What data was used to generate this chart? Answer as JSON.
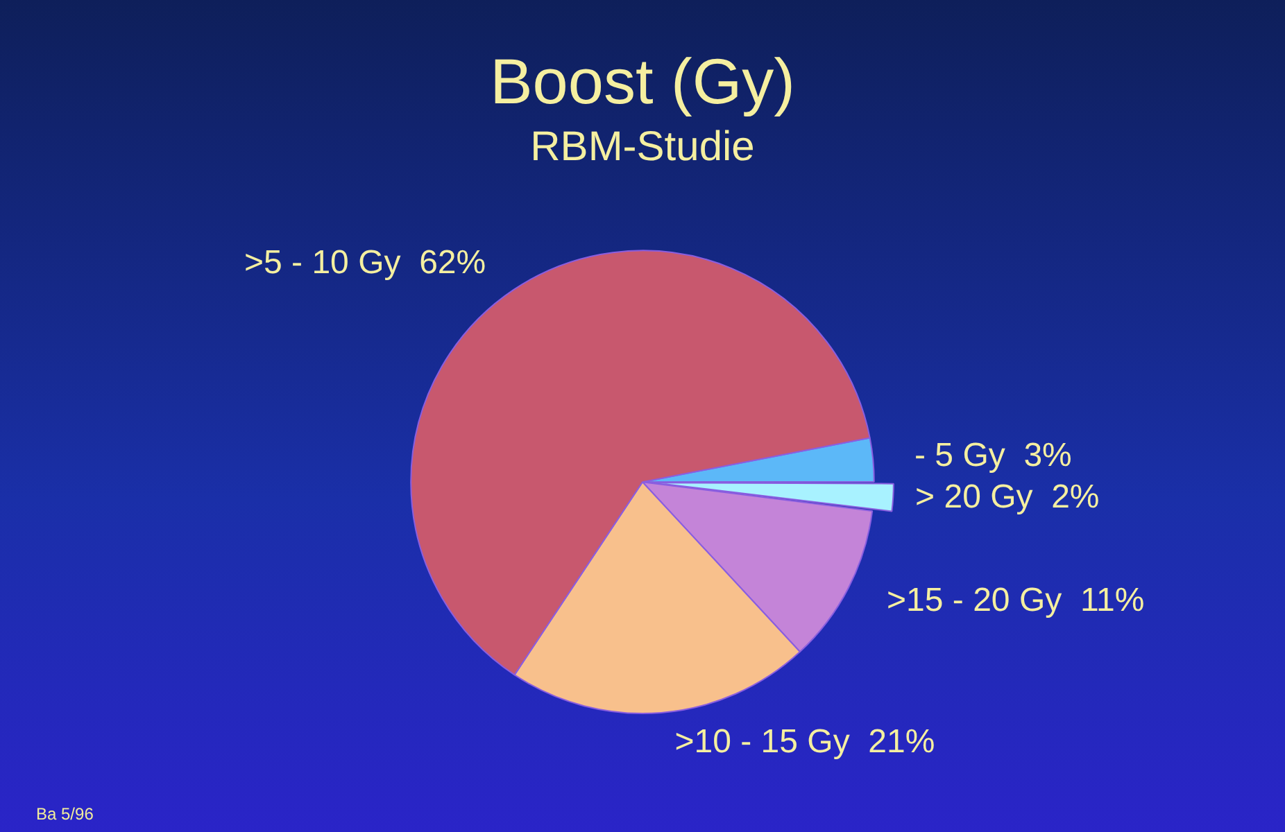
{
  "chart_data": {
    "type": "pie",
    "title": "Boost (Gy)",
    "subtitle": "RBM-Studie",
    "categories": [
      "- 5 Gy",
      "> 20 Gy",
      ">15 - 20 Gy",
      ">10 - 15 Gy",
      ">5 - 10 Gy"
    ],
    "values": [
      3,
      2,
      11,
      21,
      62
    ],
    "value_labels": [
      "3%",
      "2%",
      "11%",
      "21%",
      "62%"
    ],
    "colors": [
      "#5cb8f8",
      "#a8f2ff",
      "#c484d8",
      "#f8c08c",
      "#c8586e"
    ],
    "annotations": [
      "Ba 5/96"
    ],
    "legend": false
  }
}
